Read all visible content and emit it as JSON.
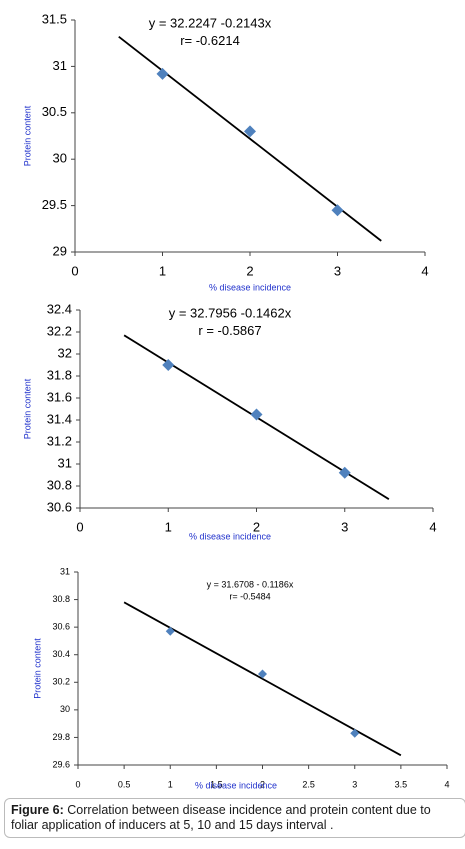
{
  "chart_data": [
    {
      "type": "scatter",
      "equation": "y = 32.2247 -0.2143x",
      "r_text": "r= -0.6214",
      "x_label": "% disease incidence",
      "y_label": "Protein content",
      "x": [
        1,
        2,
        3
      ],
      "values": [
        30.92,
        30.3,
        29.45
      ],
      "color": "#4f81bd",
      "trendline": {
        "x": [
          0.5,
          3.5
        ],
        "values": [
          31.32,
          29.12
        ],
        "color": "#000000"
      },
      "xlim": [
        0,
        4
      ],
      "xticks": [
        0,
        1,
        2,
        3,
        4
      ],
      "ylim": [
        29,
        31.5
      ],
      "yticks": [
        29,
        29.5,
        30,
        30.5,
        31,
        31.5
      ]
    },
    {
      "type": "scatter",
      "equation": "y = 32.7956 -0.1462x",
      "r_text": "r = -0.5867",
      "x_label": "% disease incidence",
      "y_label": "Protein content",
      "x": [
        1,
        2,
        3
      ],
      "values": [
        31.9,
        31.45,
        30.92
      ],
      "color": "#4f81bd",
      "trendline": {
        "x": [
          0.5,
          3.5
        ],
        "values": [
          32.17,
          30.68
        ],
        "color": "#000000"
      },
      "xlim": [
        0,
        4
      ],
      "xticks": [
        0,
        1,
        2,
        3,
        4
      ],
      "ylim": [
        30.6,
        32.4
      ],
      "yticks": [
        30.6,
        30.8,
        31,
        31.2,
        31.4,
        31.6,
        31.8,
        32,
        32.2,
        32.4
      ]
    },
    {
      "type": "scatter",
      "equation": "y = 31.6708  - 0.1186x",
      "r_text": "r= -0.5484",
      "x_label": "% disease incidence",
      "y_label": "Protein content",
      "x": [
        1,
        2,
        3
      ],
      "values": [
        30.57,
        30.26,
        29.83
      ],
      "color": "#4f81bd",
      "trendline": {
        "x": [
          0.5,
          3.5
        ],
        "values": [
          30.78,
          29.67
        ],
        "color": "#000000"
      },
      "xlim": [
        0,
        4
      ],
      "xticks": [
        0,
        0.5,
        1,
        1.5,
        2,
        2.5,
        3,
        3.5,
        4
      ],
      "ylim": [
        29.6,
        31
      ],
      "yticks": [
        29.6,
        29.8,
        30,
        30.2,
        30.4,
        30.6,
        30.8,
        31
      ]
    }
  ],
  "caption": {
    "label": "Figure 6:",
    "text": "Correlation between disease incidence and protein content due to foliar application of inducers at 5, 10 and 15 days interval ."
  }
}
